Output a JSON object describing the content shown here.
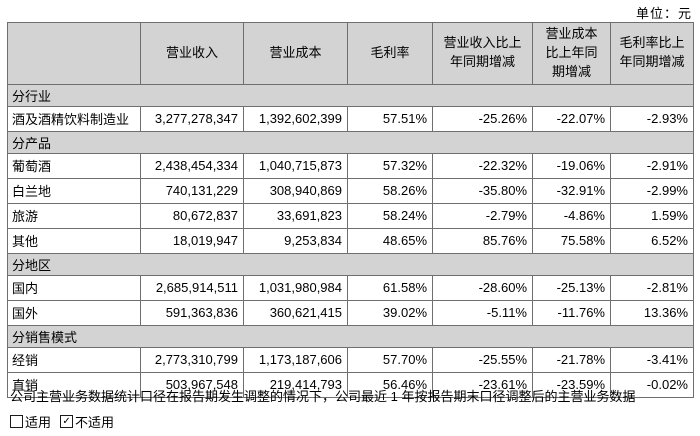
{
  "page": {
    "unit_label": "单位：元",
    "note": "公司主营业务数据统计口径在报告期发生调整的情况下，公司最近 1 年按报告期末口径调整后的主营业务数据",
    "applicable_label": "适用",
    "not_applicable_label": "不适用"
  },
  "icons": {
    "check": "✓"
  },
  "colors": {
    "section_bg": "#d3d3d3",
    "border": "#6f6f6f"
  },
  "table": {
    "columns": [
      "",
      "营业收入",
      "营业成本",
      "毛利率",
      "营业收入比上年同期增减",
      "营业成本比上年同期增减",
      "毛利率比上年同期增减"
    ],
    "rows": [
      {
        "type": "section",
        "label": "分行业"
      },
      {
        "type": "data",
        "label": "酒及酒精饮料制造业",
        "cells": [
          "3,277,278,347",
          "1,392,602,399",
          "57.51%",
          "-25.26%",
          "-22.07%",
          "-2.93%"
        ]
      },
      {
        "type": "section",
        "label": "分产品"
      },
      {
        "type": "data",
        "label": "葡萄酒",
        "cells": [
          "2,438,454,334",
          "1,040,715,873",
          "57.32%",
          "-22.32%",
          "-19.06%",
          "-2.91%"
        ]
      },
      {
        "type": "data",
        "label": "白兰地",
        "cells": [
          "740,131,229",
          "308,940,869",
          "58.26%",
          "-35.80%",
          "-32.91%",
          "-2.99%"
        ]
      },
      {
        "type": "data",
        "label": "旅游",
        "cells": [
          "80,672,837",
          "33,691,823",
          "58.24%",
          "-2.79%",
          "-4.86%",
          "1.59%"
        ]
      },
      {
        "type": "data",
        "label": "其他",
        "cells": [
          "18,019,947",
          "9,253,834",
          "48.65%",
          "85.76%",
          "75.58%",
          "6.52%"
        ]
      },
      {
        "type": "section",
        "label": "分地区"
      },
      {
        "type": "data",
        "label": "国内",
        "cells": [
          "2,685,914,511",
          "1,031,980,984",
          "61.58%",
          "-28.60%",
          "-25.13%",
          "-2.81%"
        ]
      },
      {
        "type": "data",
        "label": "国外",
        "cells": [
          "591,363,836",
          "360,621,415",
          "39.02%",
          "-5.11%",
          "-11.76%",
          "13.36%"
        ]
      },
      {
        "type": "section",
        "label": "分销售模式"
      },
      {
        "type": "data",
        "label": "经销",
        "cells": [
          "2,773,310,799",
          "1,173,187,606",
          "57.70%",
          "-25.55%",
          "-21.78%",
          "-3.41%"
        ]
      },
      {
        "type": "data",
        "label": "直销",
        "cells": [
          "503,967,548",
          "219,414,793",
          "56.46%",
          "-23.61%",
          "-23.59%",
          "-0.02%"
        ]
      }
    ]
  }
}
